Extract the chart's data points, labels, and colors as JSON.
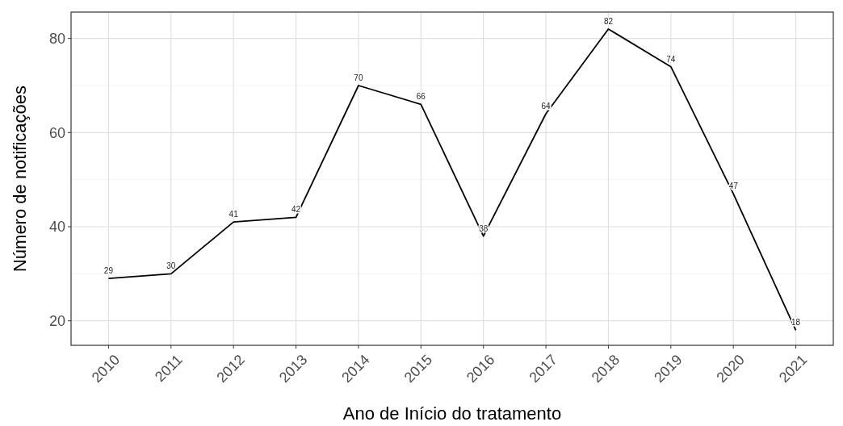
{
  "chart_data": {
    "type": "line",
    "xlabel": "Ano de Início do tratamento",
    "ylabel": "Número de notificações",
    "categories": [
      "2010",
      "2011",
      "2012",
      "2013",
      "2014",
      "2015",
      "2016",
      "2017",
      "2018",
      "2019",
      "2020",
      "2021"
    ],
    "series": [
      {
        "color": "#000000",
        "values": [
          29,
          30,
          41,
          42,
          70,
          66,
          38,
          64,
          82,
          74,
          47,
          18
        ]
      }
    ],
    "ylim": [
      14.8,
      85.6
    ],
    "yticks": [
      20,
      40,
      60,
      80
    ],
    "grid": true,
    "data_labels": true,
    "marker": "none",
    "line_style": "solid"
  }
}
